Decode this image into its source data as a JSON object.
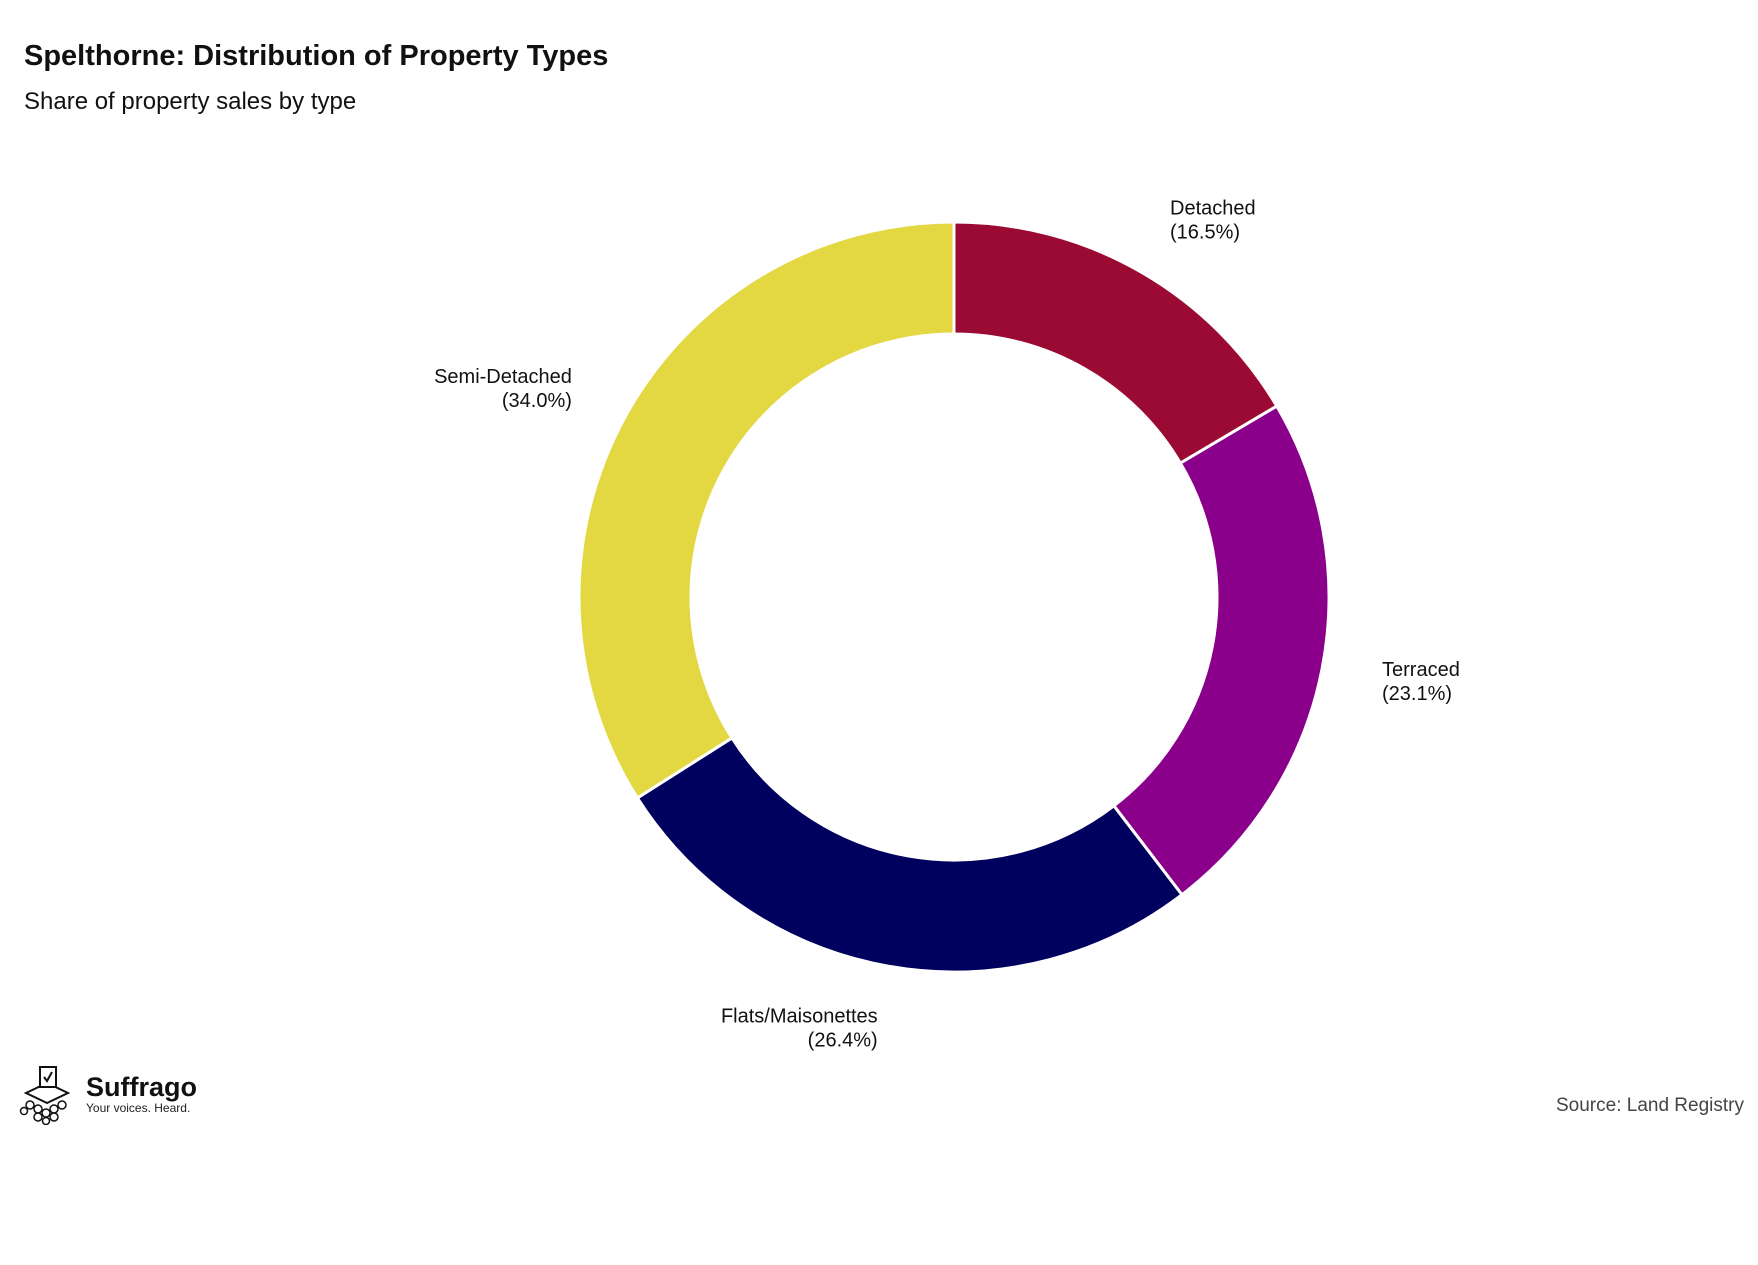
{
  "title": "Spelthorne: Distribution of Property Types",
  "subtitle": "Share of property sales by type",
  "source": "Source: Land Registry",
  "logo": {
    "name": "Suffrago",
    "tagline": "Your voices. Heard."
  },
  "chart_data": {
    "type": "pie",
    "donut": true,
    "start_angle": "12 o'clock, clockwise",
    "categories": [
      "Detached",
      "Terraced",
      "Flats/Maisonettes",
      "Semi-Detached"
    ],
    "values": [
      16.5,
      23.1,
      26.4,
      34.0
    ],
    "labels": [
      "(16.5%)",
      "(23.1%)",
      "(26.4%)",
      "(34.0%)"
    ],
    "colors": [
      "#9b0a33",
      "#8a008a",
      "#00005e",
      "#e3d742"
    ]
  }
}
